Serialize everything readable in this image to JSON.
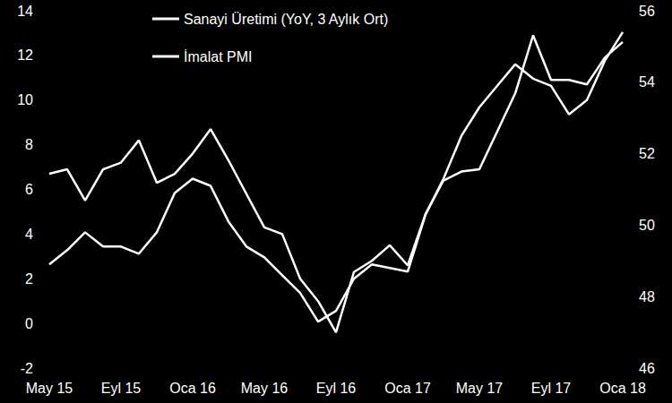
{
  "chart_data": {
    "type": "line",
    "categories": [
      "May 15",
      null,
      null,
      null,
      "Eyl 15",
      null,
      null,
      null,
      "Oca 16",
      null,
      null,
      null,
      "May 16",
      null,
      null,
      null,
      "Eyl 16",
      null,
      null,
      null,
      "Oca 17",
      null,
      null,
      null,
      "May 17",
      null,
      null,
      null,
      "Eyl 17",
      null,
      null,
      null,
      "Oca 18"
    ],
    "series": [
      {
        "name": "Sanayi Üretimi (YoY, 3 Aylık Ort)",
        "color": "#ffffff",
        "axis": "y",
        "values": [
          6.7,
          6.9,
          5.5,
          6.9,
          7.2,
          8.2,
          6.3,
          6.7,
          7.6,
          8.7,
          7.3,
          5.8,
          4.3,
          4.0,
          2.0,
          1.0,
          -0.4,
          2.3,
          2.8,
          3.5,
          2.6,
          4.9,
          6.4,
          6.8,
          6.9,
          8.6,
          10.3,
          12.9,
          10.9,
          10.9,
          10.7,
          11.9,
          12.6
        ]
      },
      {
        "name": "İmalat PMI",
        "color": "#ffffff",
        "axis": "y2",
        "values": [
          48.9,
          49.3,
          49.8,
          49.4,
          49.4,
          49.2,
          49.8,
          50.9,
          51.3,
          51.1,
          50.1,
          49.4,
          49.1,
          48.6,
          48.1,
          47.3,
          47.6,
          48.5,
          48.9,
          48.8,
          48.7,
          50.3,
          51.3,
          52.5,
          53.3,
          53.9,
          54.5,
          54.1,
          53.9,
          53.1,
          53.5,
          54.6,
          55.4
        ]
      }
    ],
    "ylim": [
      -2,
      14
    ],
    "yticks": [
      -2,
      0,
      2,
      4,
      6,
      8,
      10,
      12,
      14
    ],
    "y2lim": [
      46,
      56
    ],
    "y2ticks": [
      46,
      48,
      50,
      52,
      54,
      56
    ],
    "grid": false,
    "legend": "top-left"
  }
}
